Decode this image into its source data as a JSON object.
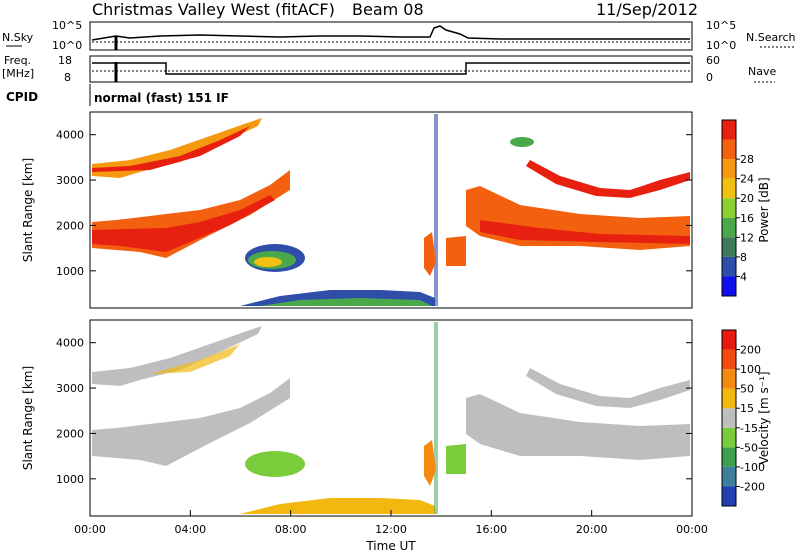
{
  "header": {
    "station": "Christmas Valley West (fitACF)",
    "beam": "Beam 08",
    "date": "11/Sep/2012"
  },
  "ops": {
    "nsky_label": "N.Sky",
    "nsky_tick_hi": "10^5",
    "nsky_tick_lo": "10^0",
    "nsearch_label": "N.Search",
    "nsearch_tick_hi": "10^5",
    "nsearch_tick_lo": "10^0",
    "freq_label": "Freq.",
    "freq_unit": "[MHz]",
    "freq_tick_hi": "18",
    "freq_tick_lo": "8",
    "nave_label": "Nave",
    "nave_tick_hi": "60",
    "nave_tick_lo": "0",
    "cpid_label": "CPID",
    "cpid_value": "normal (fast) 151 IF"
  },
  "chart_data": [
    {
      "type": "heatmap",
      "ylabel": "Slant Range [km]",
      "xlabel": "",
      "ylim": [
        180,
        4500
      ],
      "xlim": [
        "00:00",
        "24:00"
      ],
      "yticks": [
        "1000",
        "2000",
        "3000",
        "4000"
      ],
      "colorbar": {
        "label": "Power [dB]",
        "range": [
          0,
          32
        ],
        "ticks": [
          "4",
          "8",
          "12",
          "16",
          "20",
          "24",
          "28"
        ],
        "colors": [
          "#1010ee",
          "#2e4eaa",
          "#3e7a5a",
          "#4aa84a",
          "#8ad030",
          "#f2c010",
          "#f59a10",
          "#f26010",
          "#e82010"
        ]
      }
    },
    {
      "type": "heatmap",
      "ylabel": "Slant Range [km]",
      "xlabel": "Time UT",
      "ylim": [
        180,
        4500
      ],
      "xlim": [
        "00:00",
        "24:00"
      ],
      "xticks": [
        "00:00",
        "04:00",
        "08:00",
        "12:00",
        "16:00",
        "20:00",
        "00:00"
      ],
      "yticks": [
        "1000",
        "2000",
        "3000",
        "4000"
      ],
      "colorbar": {
        "label": "Velocity [m s⁻¹]",
        "ticks": [
          "200",
          "100",
          "50",
          "15",
          "-15",
          "-50",
          "-100",
          "-200"
        ],
        "colors": [
          "#2040b0",
          "#3c7e9c",
          "#3ca050",
          "#7acc3a",
          "#bebebe",
          "#f2b810",
          "#f58a10",
          "#f24a10",
          "#e81a10"
        ]
      }
    }
  ]
}
